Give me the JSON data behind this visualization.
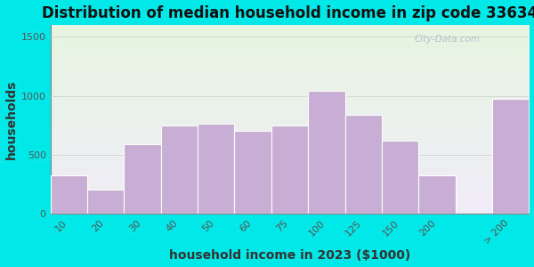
{
  "title": "Distribution of median household income in zip code 33634",
  "xlabel": "household income in 2023 ($1000)",
  "ylabel": "households",
  "bar_labels": [
    "10",
    "20",
    "30",
    "40",
    "50",
    "60",
    "75",
    "100",
    "125",
    "150",
    "200",
    "> 200"
  ],
  "bar_values": [
    330,
    210,
    590,
    750,
    760,
    700,
    750,
    1040,
    840,
    620,
    330,
    975
  ],
  "bar_color": "#c8aed4",
  "bar_edge_color": "#ffffff",
  "background_outer": "#00e8e8",
  "background_inner_top": "#e6f5e0",
  "background_inner_bottom": "#f0ecf8",
  "ylim": [
    0,
    1600
  ],
  "yticks": [
    0,
    500,
    1000,
    1500
  ],
  "title_fontsize": 12,
  "axis_label_fontsize": 10,
  "tick_fontsize": 8,
  "watermark_text": "City-Data.com"
}
